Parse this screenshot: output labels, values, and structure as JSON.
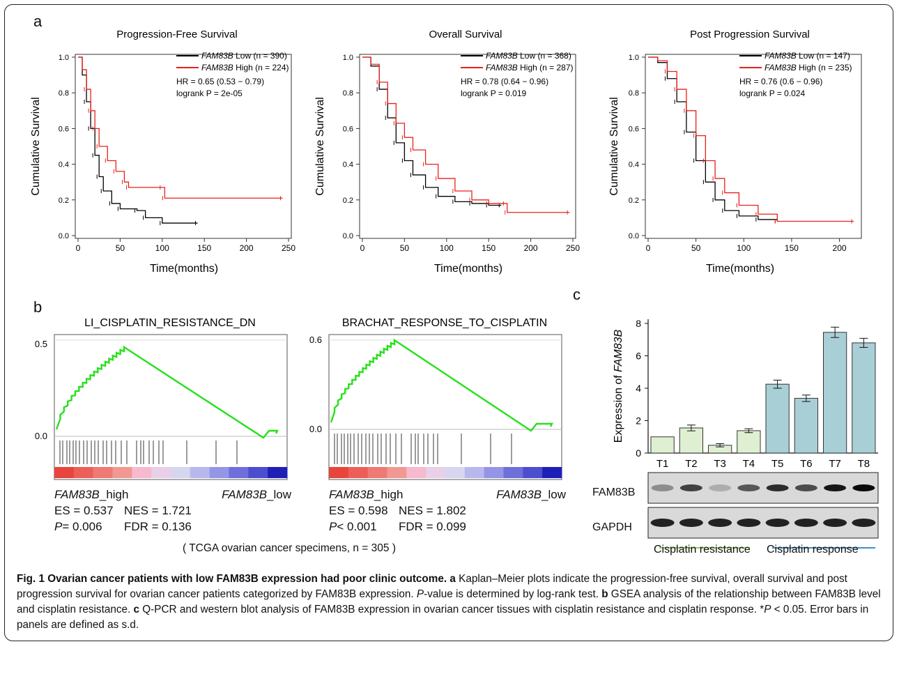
{
  "panel_letters": {
    "a": "a",
    "b": "b",
    "c": "c"
  },
  "panel_a": {
    "ylabel": "Cumulative Survival",
    "xlabel": "Time(months)",
    "plots": [
      {
        "title": "Progression-Free Survival",
        "legend": [
          {
            "gene": "FAM83B",
            "text": " Low (n = 390)",
            "color": "#000000"
          },
          {
            "gene": "FAM83B",
            "text": " High (n = 224)",
            "color": "#e8201a"
          }
        ],
        "hr": "HR = 0.65 (0.53 − 0.79)",
        "logrank": "logrank P = 2e-05",
        "xticks": [
          "0",
          "50",
          "100",
          "150",
          "200",
          "250"
        ],
        "yticks": [
          "0.0",
          "0.2",
          "0.4",
          "0.6",
          "0.8",
          "1.0"
        ]
      },
      {
        "title": "Overall Survival",
        "legend": [
          {
            "gene": "FAM83B",
            "text": " Low (n = 368)",
            "color": "#000000"
          },
          {
            "gene": "FAM83B",
            "text": " High (n = 287)",
            "color": "#e8201a"
          }
        ],
        "hr": "HR = 0.78 (0.64 − 0.96)",
        "logrank": "logrank P = 0.019",
        "xticks": [
          "0",
          "50",
          "100",
          "150",
          "200",
          "250"
        ],
        "yticks": [
          "0.0",
          "0.2",
          "0.4",
          "0.6",
          "0.8",
          "1.0"
        ]
      },
      {
        "title": "Post Progression Survival",
        "legend": [
          {
            "gene": "FAM83B",
            "text": " Low (n = 147)",
            "color": "#000000"
          },
          {
            "gene": "FAM83B",
            "text": " High (n = 235)",
            "color": "#e8201a"
          }
        ],
        "hr": "HR = 0.76 (0.6 − 0.96)",
        "logrank": "logrank P = 0.024",
        "xticks": [
          "0",
          "50",
          "100",
          "150",
          "200"
        ],
        "yticks": [
          "0.0",
          "0.2",
          "0.4",
          "0.6",
          "0.8",
          "1.0"
        ]
      }
    ]
  },
  "panel_b": {
    "plots": [
      {
        "title": "LI_CISPLATIN_RESISTANCE_DN",
        "ytick_top": "0.5",
        "ytick_zero": "0.0",
        "left_label_gene": "FAM83B",
        "left_label_suffix": "_high",
        "right_label_gene": "FAM83B",
        "right_label_suffix": "_low",
        "es": "ES = 0.537",
        "nes": "NES = 1.721",
        "p_prefix": "P",
        "p_rest": " = 0.006",
        "fdr": "FDR = 0.136"
      },
      {
        "title": "BRACHAT_RESPONSE_TO_CISPLATIN",
        "ytick_top": "0.6",
        "ytick_zero": "0.0",
        "left_label_gene": "FAM83B",
        "left_label_suffix": "_high",
        "right_label_gene": "FAM83B",
        "right_label_suffix": "_low",
        "es": "ES = 0.598",
        "nes": "NES = 1.802",
        "p_prefix": "P",
        "p_rest": " < 0.001",
        "fdr": "FDR = 0.099"
      }
    ],
    "footnote": "( TCGA ovarian cancer specimens, n = 305 )"
  },
  "panel_c": {
    "ylabel_prefix": "Expression of ",
    "ylabel_gene": "FAM83B",
    "blot_labels": [
      "FAM83B",
      "GAPDH"
    ],
    "group_labels": [
      "Cisplatin resistance",
      "Cisplatin response"
    ],
    "colors": {
      "resistance": "#dff0d2",
      "response": "#a9cfd6",
      "resistance_line": "#9ccc57",
      "response_line": "#3f8fc4"
    }
  },
  "chart_data": [
    {
      "type": "bar",
      "categories": [
        "T1",
        "T2",
        "T3",
        "T4",
        "T5",
        "T6",
        "T7",
        "T8"
      ],
      "values": [
        1.0,
        1.55,
        0.48,
        1.38,
        4.25,
        3.38,
        7.45,
        6.8
      ],
      "errors": [
        0.0,
        0.18,
        0.1,
        0.12,
        0.25,
        0.2,
        0.32,
        0.28
      ],
      "title": "",
      "xlabel": "",
      "ylabel": "Expression of FAM83B",
      "ylim": [
        0,
        8
      ],
      "yticks": [
        "0",
        "2",
        "4",
        "6",
        "8"
      ]
    }
  ],
  "caption": {
    "fig": "Fig. 1",
    "title": " Ovarian cancer patients with low FAM83B expression had poor clinic outcome.",
    "a_label": " a",
    "a_text": " Kaplan–Meier plots indicate the progression-free survival, overall survival and post progression survival for ovarian cancer patients categorized by FAM83B expression. ",
    "p_italic": "P",
    "a_text2": "-value is determined by log-rank test.",
    "b_label": " b",
    "b_text": " GSEA analysis of the relationship between FAM83B level and cisplatin resistance.",
    "c_label": " c",
    "c_text": " Q-PCR and western blot analysis of FAM83B expression in ovarian cancer tissues with cisplatin resistance and cisplatin response. *",
    "p_italic2": "P",
    "c_text2": " < 0.05. Error bars in panels are defined as s.d."
  }
}
